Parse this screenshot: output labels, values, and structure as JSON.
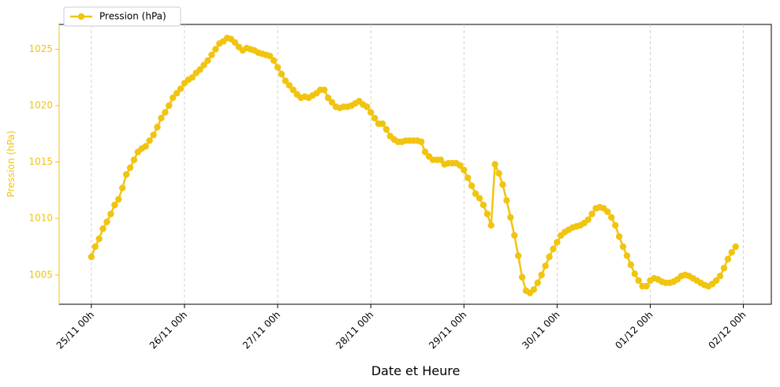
{
  "chart_data": {
    "type": "line",
    "x_label": "Date et Heure",
    "y_label": "Pression (hPa)",
    "x": [
      0,
      1,
      2,
      3,
      4,
      5,
      6,
      7,
      8,
      9,
      10,
      11,
      12,
      13,
      14,
      15,
      16,
      17,
      18,
      19,
      20,
      21,
      22,
      23,
      24,
      25,
      26,
      27,
      28,
      29,
      30,
      31,
      32,
      33,
      34,
      35,
      36,
      37,
      38,
      39,
      40,
      41,
      42,
      43,
      44,
      45,
      46,
      47,
      48,
      49,
      50,
      51,
      52,
      53,
      54,
      55,
      56,
      57,
      58,
      59,
      60,
      61,
      62,
      63,
      64,
      65,
      66,
      67,
      68,
      69,
      70,
      71,
      72,
      73,
      74,
      75,
      76,
      77,
      78,
      79,
      80,
      81,
      82,
      83,
      84,
      85,
      86,
      87,
      88,
      89,
      90,
      91,
      92,
      93,
      94,
      95,
      96,
      97,
      98,
      99,
      100,
      101,
      102,
      103,
      104,
      105,
      106,
      107,
      108,
      109,
      110,
      111,
      112,
      113,
      114,
      115,
      116,
      117,
      118,
      119,
      120,
      121,
      122,
      123,
      124,
      125,
      126,
      127,
      128,
      129,
      130,
      131,
      132,
      133,
      134,
      135,
      136,
      137,
      138,
      139,
      140,
      141,
      142,
      143,
      144,
      145,
      146,
      147,
      148,
      149,
      150,
      151,
      152,
      153,
      154,
      155,
      156,
      157,
      158,
      159,
      160,
      161,
      162,
      163,
      164,
      165,
      166
    ],
    "series": [
      {
        "name": "Pression (hPa)",
        "color": "#f1c40f",
        "values": [
          1006.6,
          1007.5,
          1008.2,
          1009.1,
          1009.7,
          1010.4,
          1011.2,
          1011.7,
          1012.7,
          1013.9,
          1014.5,
          1015.2,
          1015.9,
          1016.2,
          1016.4,
          1016.9,
          1017.4,
          1018.1,
          1018.9,
          1019.4,
          1020.0,
          1020.7,
          1021.1,
          1021.5,
          1022.0,
          1022.3,
          1022.5,
          1022.9,
          1023.2,
          1023.6,
          1024.0,
          1024.5,
          1025.0,
          1025.5,
          1025.7,
          1026.0,
          1025.9,
          1025.6,
          1025.2,
          1024.9,
          1025.1,
          1025.0,
          1024.9,
          1024.7,
          1024.6,
          1024.5,
          1024.4,
          1024.0,
          1023.4,
          1022.8,
          1022.2,
          1021.8,
          1021.4,
          1021.0,
          1020.7,
          1020.8,
          1020.7,
          1020.9,
          1021.1,
          1021.4,
          1021.4,
          1020.7,
          1020.3,
          1019.9,
          1019.8,
          1019.9,
          1019.9,
          1020.0,
          1020.2,
          1020.4,
          1020.1,
          1019.9,
          1019.4,
          1018.9,
          1018.4,
          1018.4,
          1017.9,
          1017.3,
          1017.0,
          1016.8,
          1016.8,
          1016.9,
          1016.9,
          1016.9,
          1016.9,
          1016.8,
          1015.9,
          1015.5,
          1015.2,
          1015.2,
          1015.2,
          1014.8,
          1014.9,
          1014.9,
          1014.9,
          1014.7,
          1014.3,
          1013.6,
          1012.9,
          1012.2,
          1011.8,
          1011.2,
          1010.4,
          1009.4,
          1014.8,
          1014.0,
          1013.0,
          1011.6,
          1010.1,
          1008.5,
          1006.7,
          1004.8,
          1003.6,
          1003.4,
          1003.7,
          1004.3,
          1005.0,
          1005.8,
          1006.6,
          1007.3,
          1007.9,
          1008.5,
          1008.8,
          1009.0,
          1009.2,
          1009.3,
          1009.4,
          1009.6,
          1009.9,
          1010.4,
          1010.9,
          1011.0,
          1010.9,
          1010.6,
          1010.1,
          1009.4,
          1008.4,
          1007.5,
          1006.7,
          1005.9,
          1005.1,
          1004.5,
          1004.0,
          1004.0,
          1004.5,
          1004.7,
          1004.6,
          1004.4,
          1004.3,
          1004.3,
          1004.4,
          1004.6,
          1004.9,
          1005.0,
          1004.9,
          1004.7,
          1004.5,
          1004.3,
          1004.1,
          1004.0,
          1004.2,
          1004.5,
          1004.9,
          1005.6,
          1006.4,
          1007.0,
          1007.5
        ]
      }
    ],
    "xlim": [
      -8.3,
      175.2
    ],
    "xticks": [
      {
        "value": 0,
        "label": "25/11 00h"
      },
      {
        "value": 24,
        "label": "26/11 00h"
      },
      {
        "value": 48,
        "label": "27/11 00h"
      },
      {
        "value": 72,
        "label": "28/11 00h"
      },
      {
        "value": 96,
        "label": "29/11 00h"
      },
      {
        "value": 120,
        "label": "30/11 00h"
      },
      {
        "value": 144,
        "label": "01/12 00h"
      },
      {
        "value": 168,
        "label": "02/12 00h"
      }
    ],
    "ylim": [
      1002.4,
      1027.2
    ],
    "yticks": [
      1005,
      1010,
      1015,
      1020,
      1025
    ],
    "grid": "x",
    "legend": "upper-left"
  }
}
